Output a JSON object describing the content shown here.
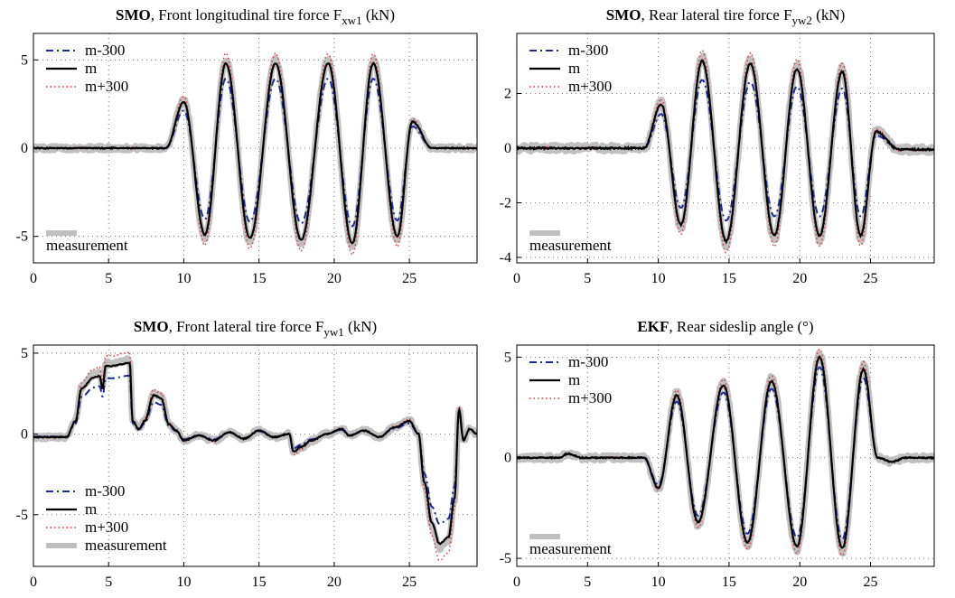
{
  "chart_data": [
    {
      "type": "line",
      "title": {
        "bold": "SMO",
        "text": ", Front longitudinal tire force F",
        "sub": "xw1",
        "unit": " (kN)"
      },
      "xlim": [
        0,
        29.5
      ],
      "ylim": [
        -6.5,
        6.5
      ],
      "xticks": [
        0,
        5,
        10,
        15,
        20,
        25
      ],
      "yticks": [
        -5,
        0,
        5
      ],
      "grid": true,
      "legend": {
        "position": "top-left",
        "entries": [
          "m-300",
          "m",
          "m+300"
        ],
        "measurement_position": "bottom-left",
        "measurement_label": "measurement"
      },
      "signal": {
        "kind": "osc",
        "peaks": [
          [
            10,
            2.6
          ],
          [
            11.4,
            -4.9
          ],
          [
            12.8,
            4.8
          ],
          [
            14.4,
            -5.1
          ],
          [
            16.1,
            4.8
          ],
          [
            17.8,
            -5.2
          ],
          [
            19.6,
            4.8
          ],
          [
            21.2,
            -5.4
          ],
          [
            22.6,
            4.8
          ],
          [
            24.2,
            -5.0
          ],
          [
            25.2,
            1.5
          ],
          [
            26.5,
            0
          ],
          [
            29.5,
            0
          ]
        ],
        "scale_minus": 0.82,
        "scale_plus": 1.12
      }
    },
    {
      "type": "line",
      "title": {
        "bold": "SMO",
        "text": ", Rear lateral tire force F",
        "sub": "yw2",
        "unit": " (kN)"
      },
      "xlim": [
        0,
        29.5
      ],
      "ylim": [
        -4.2,
        4.2
      ],
      "xticks": [
        0,
        5,
        10,
        15,
        20,
        25
      ],
      "yticks": [
        -4,
        -2,
        0,
        2
      ],
      "grid": true,
      "legend": {
        "position": "top-left",
        "entries": [
          "m-300",
          "m",
          "m+300"
        ],
        "measurement_position": "bottom-left",
        "measurement_label": "measurement"
      },
      "signal": {
        "kind": "osc",
        "peaks": [
          [
            10.2,
            1.6
          ],
          [
            11.6,
            -2.8
          ],
          [
            13.1,
            3.2
          ],
          [
            14.8,
            -3.4
          ],
          [
            16.5,
            3.1
          ],
          [
            18.2,
            -3.2
          ],
          [
            19.8,
            2.9
          ],
          [
            21.4,
            -3.2
          ],
          [
            23.0,
            2.8
          ],
          [
            24.3,
            -3.2
          ],
          [
            25.4,
            0.6
          ],
          [
            27.0,
            -0.05
          ],
          [
            29.5,
            -0.05
          ]
        ],
        "scale_minus": 0.78,
        "scale_plus": 1.12
      }
    },
    {
      "type": "line",
      "title": {
        "bold": "SMO",
        "text": ", Front lateral tire force F",
        "sub": "yw1",
        "unit": " (kN)"
      },
      "xlim": [
        0,
        29.5
      ],
      "ylim": [
        -8.2,
        5.5
      ],
      "xticks": [
        0,
        5,
        10,
        15,
        20,
        25
      ],
      "yticks": [
        -5,
        0,
        5
      ],
      "grid": true,
      "legend": {
        "position": "bottom-left",
        "entries": [
          "m-300",
          "m",
          "m+300",
          "measurement"
        ]
      },
      "signal": {
        "kind": "pts",
        "points": [
          [
            0,
            -0.2
          ],
          [
            2.2,
            -0.2
          ],
          [
            2.8,
            0.8
          ],
          [
            3.2,
            2.8
          ],
          [
            4.0,
            3.5
          ],
          [
            4.4,
            3.6
          ],
          [
            4.6,
            2.8
          ],
          [
            4.8,
            4.2
          ],
          [
            5.2,
            4.2
          ],
          [
            6.4,
            4.4
          ],
          [
            6.6,
            0.8
          ],
          [
            7.0,
            0.3
          ],
          [
            7.4,
            0.8
          ],
          [
            8.0,
            2.4
          ],
          [
            8.5,
            2.2
          ],
          [
            9.0,
            0.6
          ],
          [
            9.5,
            0.2
          ],
          [
            10.0,
            -0.4
          ],
          [
            11.0,
            -0.1
          ],
          [
            12.0,
            -0.4
          ],
          [
            13.0,
            0.1
          ],
          [
            14.0,
            -0.3
          ],
          [
            15.0,
            0.2
          ],
          [
            16.0,
            -0.2
          ],
          [
            17.0,
            0
          ],
          [
            17.3,
            -1.1
          ],
          [
            17.8,
            -0.8
          ],
          [
            18.5,
            -0.4
          ],
          [
            19.5,
            0
          ],
          [
            20.5,
            0.3
          ],
          [
            21.0,
            -0.1
          ],
          [
            22.0,
            0.2
          ],
          [
            23.0,
            -0.2
          ],
          [
            24.0,
            0.4
          ],
          [
            25.0,
            0.8
          ],
          [
            25.6,
            0
          ],
          [
            26.0,
            -3.0
          ],
          [
            26.5,
            -5.5
          ],
          [
            27.0,
            -6.8
          ],
          [
            27.6,
            -6.4
          ],
          [
            28.0,
            -4.0
          ],
          [
            28.3,
            1.5
          ],
          [
            28.6,
            -0.4
          ],
          [
            29.0,
            0.3
          ],
          [
            29.5,
            0
          ]
        ],
        "scale_minus": 0.82,
        "scale_plus": 1.15
      }
    },
    {
      "type": "line",
      "title": {
        "bold": "EKF",
        "text": ", Rear sideslip angle (°)",
        "sub": "",
        "unit": ""
      },
      "xlim": [
        0,
        29.5
      ],
      "ylim": [
        -5.4,
        5.6
      ],
      "xticks": [
        0,
        5,
        10,
        15,
        20,
        25
      ],
      "yticks": [
        -5,
        0,
        5
      ],
      "grid": true,
      "legend": {
        "position": "top-left",
        "entries": [
          "m-300",
          "m",
          "m+300"
        ],
        "measurement_position": "bottom-left",
        "measurement_label": "measurement"
      },
      "signal": {
        "kind": "osc",
        "peaks": [
          [
            3.0,
            0
          ],
          [
            3.6,
            0.2
          ],
          [
            4.6,
            0
          ],
          [
            9.0,
            0
          ],
          [
            10.0,
            -1.5
          ],
          [
            11.3,
            3.1
          ],
          [
            12.8,
            -3.2
          ],
          [
            14.6,
            3.6
          ],
          [
            16.3,
            -4.2
          ],
          [
            18.0,
            3.8
          ],
          [
            19.8,
            -4.4
          ],
          [
            21.4,
            5.0
          ],
          [
            23.0,
            -4.5
          ],
          [
            24.5,
            4.4
          ],
          [
            25.5,
            0
          ],
          [
            26.5,
            -0.2
          ],
          [
            27.5,
            0
          ],
          [
            29.5,
            0
          ]
        ],
        "scale_minus": 0.9,
        "scale_plus": 1.08
      }
    }
  ]
}
